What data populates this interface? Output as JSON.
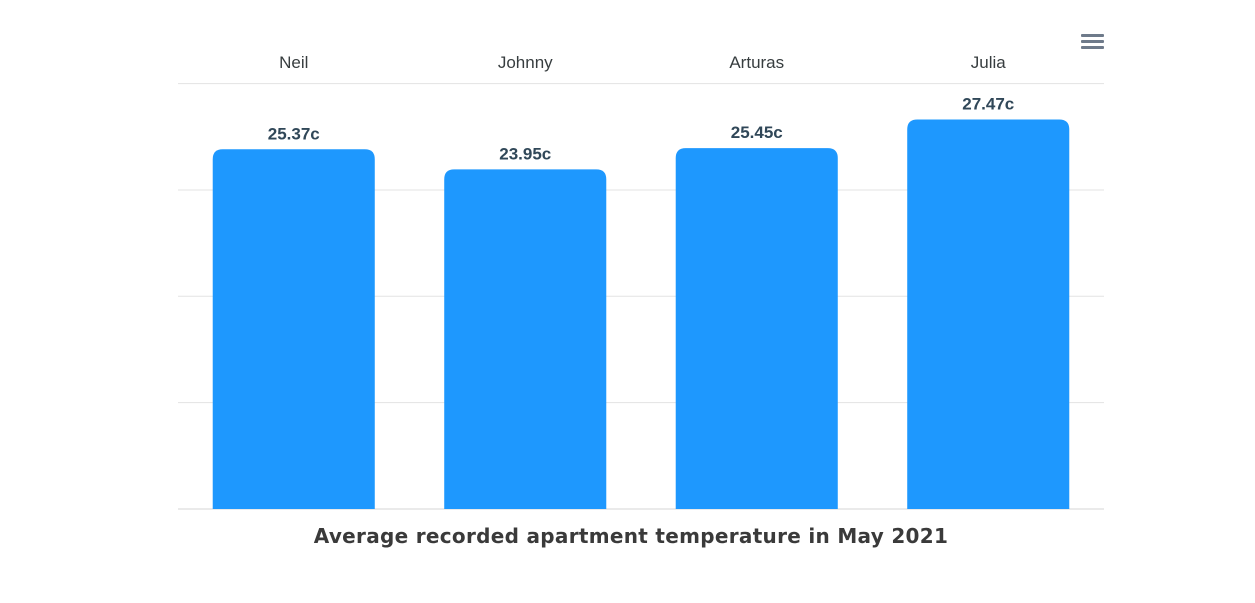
{
  "chart_data": {
    "type": "bar",
    "title": "Average recorded apartment temperature in May 2021",
    "categories": [
      "Neil",
      "Johnny",
      "Arturas",
      "Julia"
    ],
    "values": [
      25.37,
      23.95,
      25.45,
      27.47
    ],
    "data_labels": [
      "25.37c",
      "23.95c",
      "25.45c",
      "27.47c"
    ],
    "xlabel": "",
    "ylabel": "",
    "ylim": [
      0,
      30
    ],
    "grid": true,
    "category_axis_position": "top",
    "legend": "none",
    "colors": {
      "bar": "#1e98fe",
      "grid": "#e3e3e3",
      "category_label": "#373d3f",
      "data_label": "#304758",
      "title": "#3a3a3a",
      "menu_icon": "#6e7a8a"
    }
  },
  "toolbar": {
    "menu_icon": "hamburger-menu-icon"
  }
}
